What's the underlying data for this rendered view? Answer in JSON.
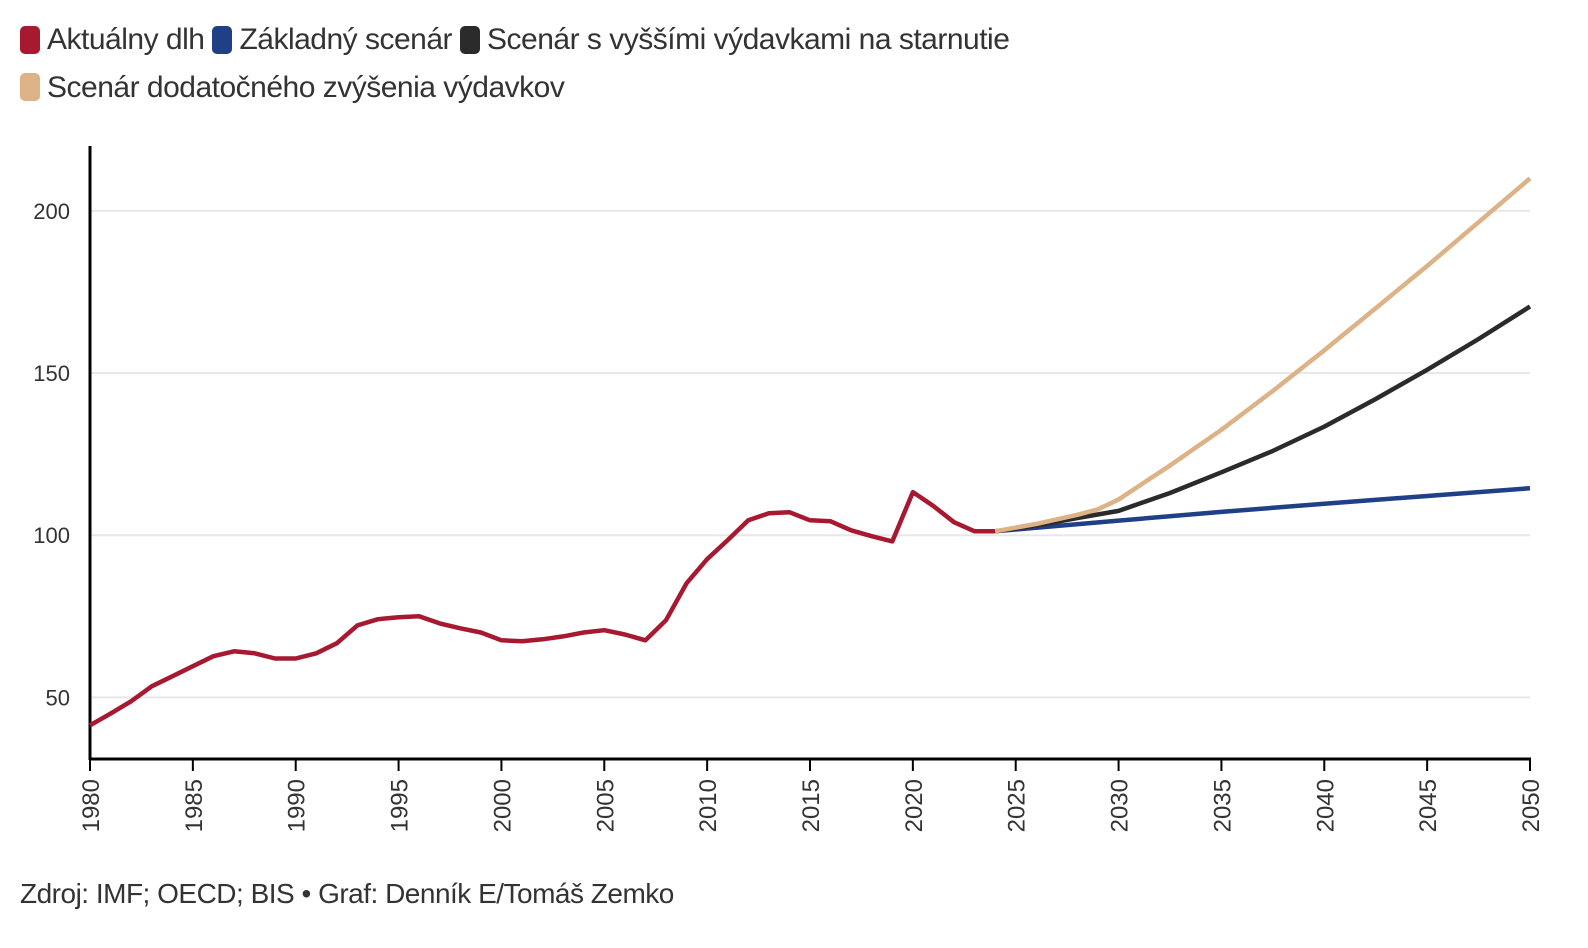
{
  "chart_data": {
    "type": "line",
    "title": "",
    "xlabel": "",
    "ylabel": "",
    "xlim": [
      1980,
      2050
    ],
    "ylim": [
      31,
      220
    ],
    "grid": "horizontal",
    "legend_position": "top-left",
    "x_ticks": [
      1980,
      1985,
      1990,
      1995,
      2000,
      2005,
      2010,
      2015,
      2020,
      2025,
      2030,
      2035,
      2040,
      2045,
      2050
    ],
    "y_ticks": [
      50,
      100,
      150,
      200
    ],
    "series": [
      {
        "name": "Aktuálny dlh",
        "color": "#a71930",
        "x": [
          1980,
          1981,
          1982,
          1983,
          1984,
          1985,
          1986,
          1987,
          1988,
          1989,
          1990,
          1991,
          1992,
          1993,
          1994,
          1995,
          1996,
          1997,
          1998,
          1999,
          2000,
          2001,
          2002,
          2003,
          2004,
          2005,
          2006,
          2007,
          2008,
          2009,
          2010,
          2011,
          2012,
          2013,
          2014,
          2015,
          2016,
          2017,
          2018,
          2019,
          2020,
          2021,
          2022,
          2023,
          2024
        ],
        "y": [
          41.4,
          45,
          48.8,
          53.4,
          56.5,
          59.6,
          62.7,
          64.2,
          63.6,
          62,
          62,
          63.6,
          66.7,
          72.2,
          74.1,
          74.7,
          75,
          72.8,
          71.3,
          70,
          67.6,
          67.3,
          67.9,
          68.8,
          70,
          70.7,
          69.4,
          67.6,
          73.8,
          85.2,
          92.6,
          98.5,
          104.6,
          106.8,
          107.1,
          104.6,
          104.3,
          101.5,
          99.7,
          98.1,
          113.3,
          109,
          104,
          101.2,
          101.2
        ]
      },
      {
        "name": "Základný scenár",
        "color": "#1f3f86",
        "x": [
          2024,
          2030,
          2035,
          2040,
          2045,
          2050
        ],
        "y": [
          101.2,
          104.5,
          107.2,
          109.7,
          112.1,
          114.5
        ]
      },
      {
        "name": "Scenár s vyššími výdavkami na starnutie",
        "color": "#2b2b2b",
        "x": [
          2024,
          2026,
          2028,
          2030,
          2032.5,
          2035,
          2037.5,
          2040,
          2042.5,
          2045,
          2047.5,
          2050
        ],
        "y": [
          101.2,
          103,
          105.3,
          107.5,
          113,
          119.4,
          126,
          133.5,
          142,
          151,
          160.5,
          170.5
        ]
      },
      {
        "name": "Scenár dodatočného zvýšenia výdavkov",
        "color": "#dcb286",
        "x": [
          2024,
          2026,
          2028,
          2029,
          2030,
          2032.5,
          2035,
          2037.5,
          2040,
          2042.5,
          2045,
          2047.5,
          2050
        ],
        "y": [
          101.2,
          103.5,
          106.3,
          108,
          111,
          121.5,
          132.5,
          144.5,
          157,
          170,
          183,
          196.5,
          210
        ]
      }
    ]
  },
  "source": "Zdroj: IMF; OECD; BIS • Graf: Denník E/Tomáš Zemko"
}
